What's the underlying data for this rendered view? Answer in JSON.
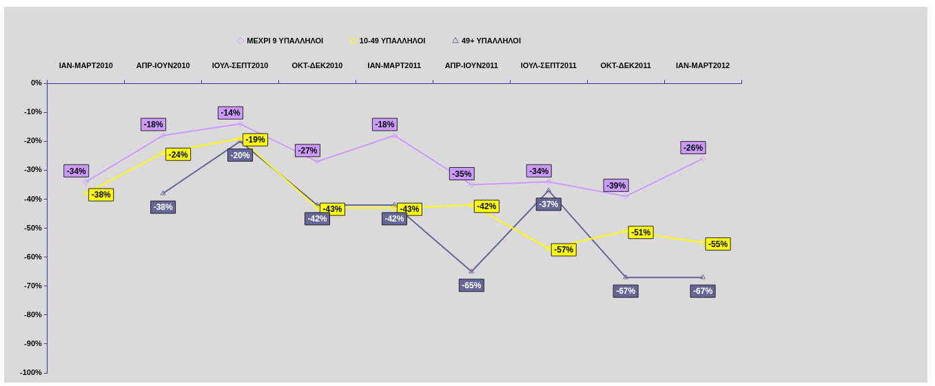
{
  "chart_data": {
    "type": "line",
    "categories": [
      "ΙΑΝ-ΜΑΡΤ2010",
      "ΑΠΡ-ΙΟΥΝ2010",
      "ΙΟΥΛ-ΣΕΠΤ2010",
      "ΟΚΤ-ΔΕΚ2010",
      "ΙΑΝ-ΜΑΡΤ2011",
      "ΑΠΡ-ΙΟΥΝ2011",
      "ΙΟΥΛ-ΣΕΠΤ2011",
      "ΟΚΤ-ΔΕΚ2011",
      "ΙΑΝ-ΜΑΡΤ2012"
    ],
    "series": [
      {
        "name": "ΜΕΧΡΙ 9 ΥΠΑΛΛΗΛΟΙ",
        "color": "#cc99ff",
        "marker": "diamond",
        "values": [
          -34,
          -18,
          -14,
          -27,
          -18,
          -35,
          -34,
          -39,
          -26
        ],
        "value_labels": [
          "-34%",
          "-18%",
          "-14%",
          "-27%",
          "-18%",
          "-35%",
          "-34%",
          "-39%",
          "-26%"
        ]
      },
      {
        "name": "10-49 ΥΠΑΛΛΗΛΟΙ",
        "color": "#ffff00",
        "marker": "square",
        "values": [
          -38,
          -24,
          -19,
          -43,
          -43,
          -42,
          -57,
          -51,
          -55
        ],
        "value_labels": [
          "-38%",
          "-24%",
          "-19%",
          "-43%",
          "-43%",
          "-42%",
          "-57%",
          "-51%",
          "-55%"
        ]
      },
      {
        "name": "49+ ΥΠΑΛΛΗΛΟΙ",
        "color": "#666699",
        "marker": "triangle",
        "values": [
          null,
          -38,
          -20,
          -42,
          -42,
          -65,
          -37,
          -67,
          -67
        ],
        "value_labels": [
          null,
          "-38%",
          "-20%",
          "-42%",
          "-42%",
          "-65%",
          "-37%",
          "-67%",
          "-67%"
        ]
      }
    ],
    "ylim": [
      -100,
      0
    ],
    "yticks": [
      {
        "value": 0,
        "label": "0%"
      },
      {
        "value": -10,
        "label": "-10%"
      },
      {
        "value": -20,
        "label": "-20%"
      },
      {
        "value": -30,
        "label": "-30%"
      },
      {
        "value": -40,
        "label": "-40%"
      },
      {
        "value": -50,
        "label": "-50%"
      },
      {
        "value": -60,
        "label": "-60%"
      },
      {
        "value": -70,
        "label": "-70%"
      },
      {
        "value": -80,
        "label": "-80%"
      },
      {
        "value": -90,
        "label": "-90%"
      },
      {
        "value": -100,
        "label": "-100%"
      }
    ],
    "grid": false,
    "legend": "top",
    "line_style": "solid"
  }
}
